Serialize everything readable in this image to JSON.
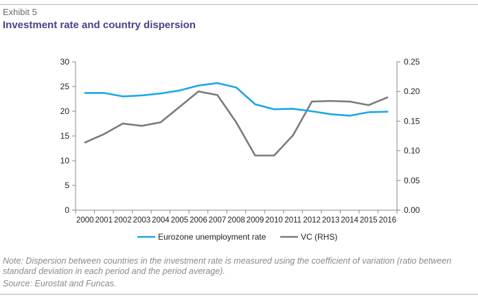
{
  "header": {
    "exhibit": "Exhibit 5",
    "title": "Investment rate and country dispersion"
  },
  "footer": {
    "note": "Note: Dispersion between countries in the investment rate is measured using the coefficient of variation (ratio between standard deviation in each period and the period average).",
    "source": "Source: Eurostat and Funcas."
  },
  "colors": {
    "series_1": "#1aa7e6",
    "series_2": "#7a7a7a",
    "axis": "#888888",
    "text": "#222222"
  },
  "chart_data": {
    "type": "line",
    "title": "Investment rate and country dispersion",
    "x": [
      "2000",
      "2001",
      "2002",
      "2003",
      "2004",
      "2005",
      "2006",
      "2007",
      "2008",
      "2009",
      "2010",
      "2011",
      "2012",
      "2013",
      "2014",
      "2015",
      "2016"
    ],
    "series": [
      {
        "name": "Eurozone unemployment rate",
        "axis": "left",
        "values": [
          23.7,
          23.7,
          23.0,
          23.2,
          23.6,
          24.2,
          25.2,
          25.7,
          24.8,
          21.4,
          20.4,
          20.5,
          20.0,
          19.4,
          19.1,
          19.8,
          19.9
        ]
      },
      {
        "name": "VC (RHS)",
        "axis": "right",
        "values": [
          0.114,
          0.128,
          0.146,
          0.142,
          0.148,
          0.174,
          0.2,
          0.194,
          0.148,
          0.092,
          0.092,
          0.126,
          0.183,
          0.184,
          0.183,
          0.177,
          0.19
        ]
      }
    ],
    "left_axis": {
      "min": 0,
      "max": 30,
      "ticks": [
        "0",
        "5",
        "10",
        "15",
        "20",
        "25",
        "30"
      ]
    },
    "right_axis": {
      "min": 0,
      "max": 0.25,
      "ticks": [
        "0.00",
        "0.05",
        "0.10",
        "0.15",
        "0.20",
        "0.25"
      ]
    },
    "legend_position": "bottom",
    "grid": false
  }
}
